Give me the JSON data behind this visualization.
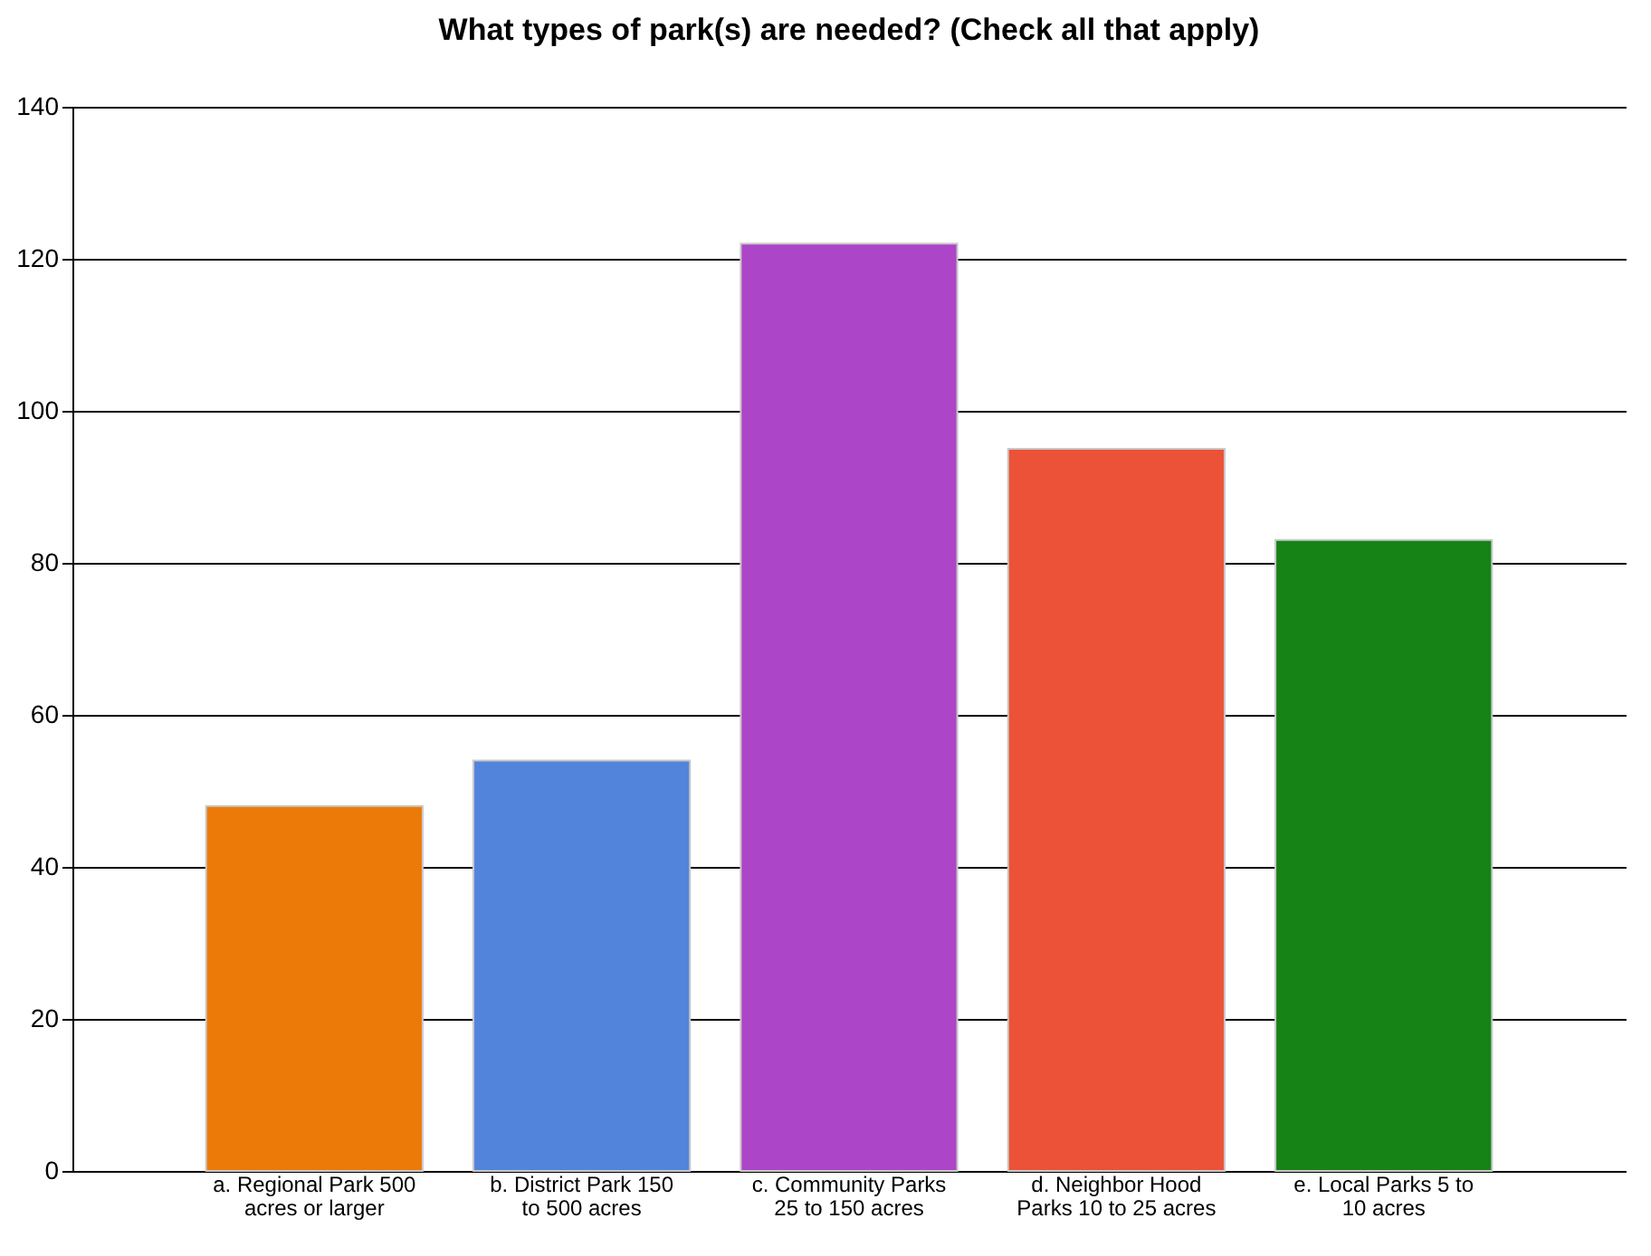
{
  "chart_data": {
    "type": "bar",
    "title": "What types of park(s) are needed? (Check all that apply)",
    "categories": [
      "a. Regional Park 500 acres or larger",
      "b. District Park 150 to 500 acres",
      "c. Community Parks 25 to 150 acres",
      "d. Neighbor Hood Parks 10 to 25 acres",
      "e. Local Parks 5 to 10 acres"
    ],
    "values": [
      48,
      54,
      122,
      95,
      83
    ],
    "colors": [
      "#ec7a08",
      "#5384dc",
      "#ad45c8",
      "#ec5238",
      "#168316"
    ],
    "ylim": [
      0,
      140
    ],
    "yticks": [
      0,
      20,
      40,
      60,
      80,
      100,
      120,
      140
    ],
    "grid": "y"
  }
}
